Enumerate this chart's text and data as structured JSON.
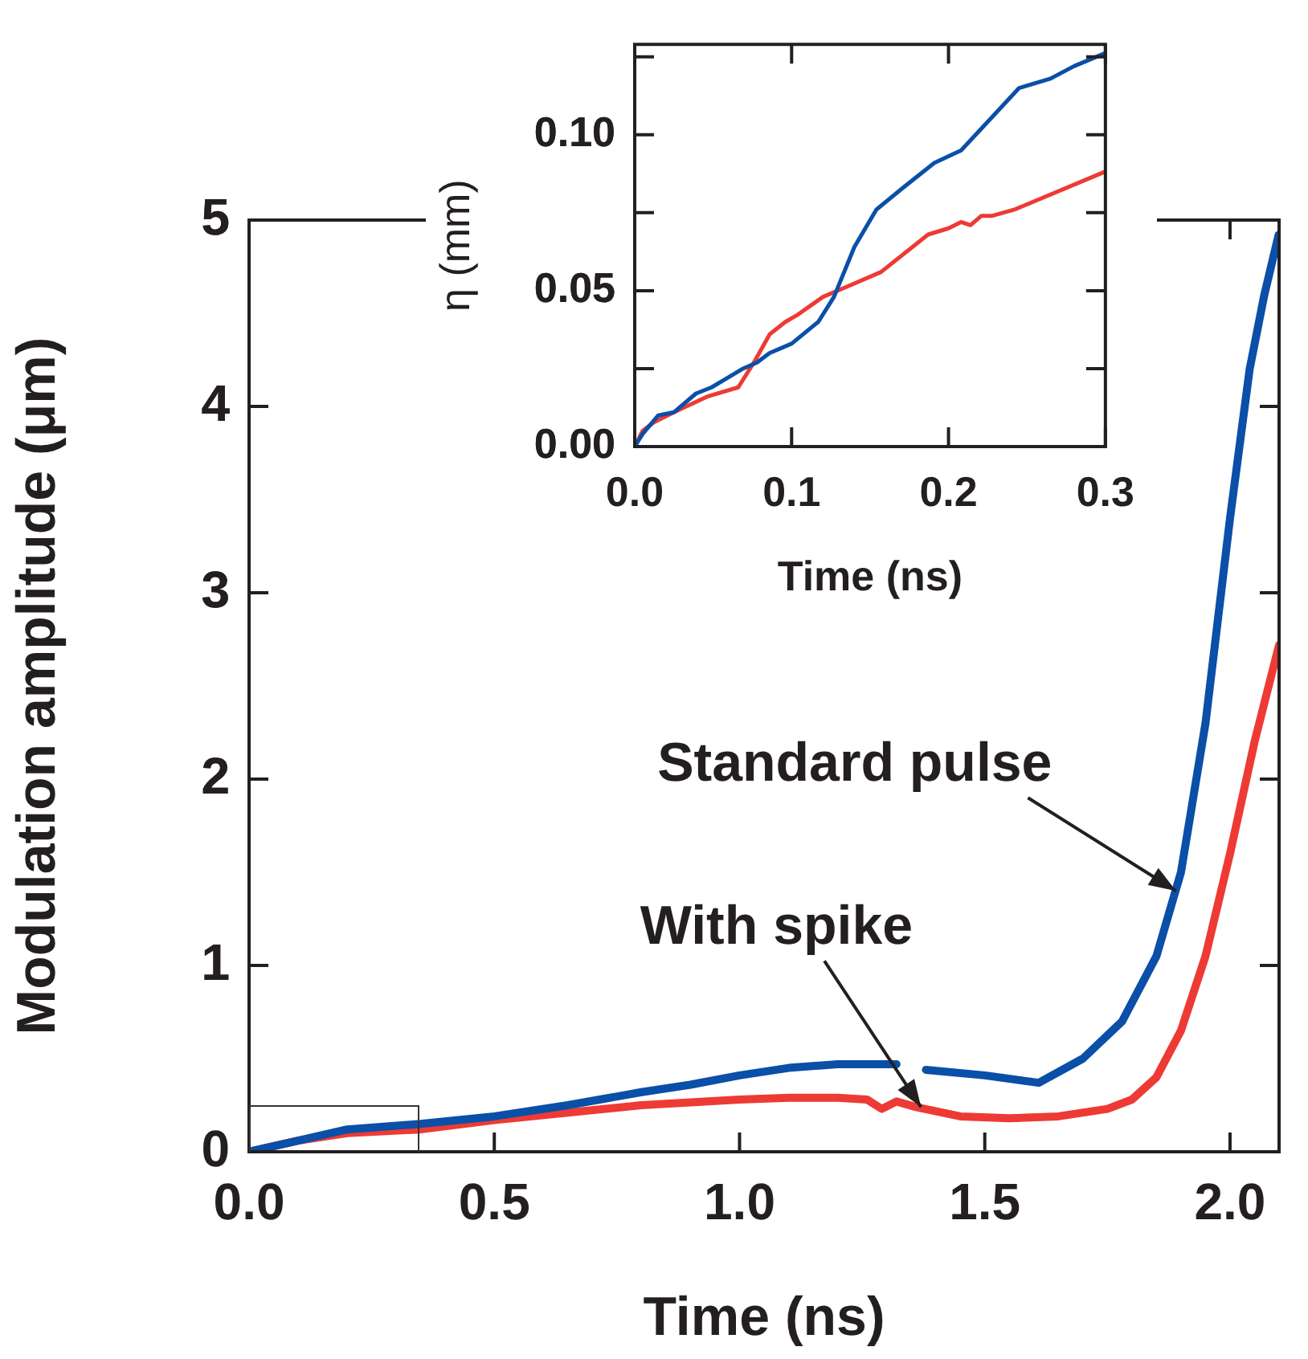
{
  "chart_data": [
    {
      "type": "line",
      "xlabel": "Time (ns)",
      "ylabel": "Modulation amplitude (μm)",
      "xlim": [
        0,
        2.1
      ],
      "ylim": [
        0,
        5
      ],
      "xticks": [
        {
          "value": 0,
          "label": "0.0"
        },
        {
          "value": 0.5,
          "label": "0.5"
        },
        {
          "value": 1,
          "label": "1.0"
        },
        {
          "value": 1.5,
          "label": "1.5"
        },
        {
          "value": 2,
          "label": "2.0"
        }
      ],
      "yticks": [
        0,
        1,
        2,
        3,
        4,
        5
      ],
      "grid": false,
      "legend": false,
      "marker": "none",
      "line_style": "solid",
      "series": [
        {
          "color": "#0a4fa8",
          "x": [
            0,
            0.1,
            0.2,
            0.35,
            0.5,
            0.65,
            0.8,
            0.9,
            1.0,
            1.1,
            1.2,
            1.32,
            1.34,
            1.38,
            1.5,
            1.61,
            1.7,
            1.78,
            1.85,
            1.9,
            1.95,
            2.0,
            2.04,
            2.07,
            2.099
          ],
          "values": [
            0,
            0.06,
            0.12,
            0.15,
            0.19,
            0.25,
            0.32,
            0.36,
            0.41,
            0.45,
            0.47,
            0.47,
            null,
            0.44,
            0.41,
            0.37,
            0.5,
            0.7,
            1.05,
            1.5,
            2.3,
            3.4,
            4.2,
            4.6,
            4.92
          ]
        },
        {
          "color": "#ee3a34",
          "x": [
            0,
            0.1,
            0.2,
            0.35,
            0.5,
            0.65,
            0.8,
            1.0,
            1.1,
            1.2,
            1.26,
            1.29,
            1.32,
            1.36,
            1.45,
            1.55,
            1.65,
            1.75,
            1.8,
            1.85,
            1.9,
            1.95,
            2.0,
            2.05,
            2.1
          ],
          "values": [
            0,
            0.06,
            0.1,
            0.12,
            0.17,
            0.21,
            0.25,
            0.28,
            0.29,
            0.29,
            0.28,
            0.23,
            0.27,
            0.24,
            0.19,
            0.18,
            0.19,
            0.23,
            0.28,
            0.4,
            0.65,
            1.05,
            1.6,
            2.2,
            2.72
          ]
        }
      ],
      "annotations": [
        {
          "text": "Standard pulse",
          "x": 1.89,
          "y": 1.4
        },
        {
          "text": "With spike",
          "x": 1.37,
          "y": 0.24
        }
      ]
    },
    {
      "type": "line",
      "xlabel": "Time (ns)",
      "ylabel": "η (mm)",
      "xlim": [
        0,
        0.3
      ],
      "ylim": [
        0,
        0.129
      ],
      "xticks": [
        {
          "value": 0,
          "label": "0.0"
        },
        {
          "value": 0.1,
          "label": "0.1"
        },
        {
          "value": 0.2,
          "label": "0.2"
        },
        {
          "value": 0.3,
          "label": "0.3"
        }
      ],
      "yticks": [
        {
          "value": 0,
          "label": "0.00"
        },
        {
          "value": 0.025,
          "label": null
        },
        {
          "value": 0.05,
          "label": "0.05"
        },
        {
          "value": 0.075,
          "label": null
        },
        {
          "value": 0.1,
          "label": "0.10"
        },
        {
          "value": 0.125,
          "label": null
        }
      ],
      "grid": false,
      "legend": false,
      "marker": "none",
      "line_style": "solid",
      "series": [
        {
          "color": "#0a4fa8",
          "x": [
            0,
            0.005,
            0.015,
            0.025,
            0.039,
            0.049,
            0.059,
            0.069,
            0.078,
            0.086,
            0.1,
            0.117,
            0.127,
            0.14,
            0.154,
            0.171,
            0.191,
            0.208,
            0.221,
            0.245,
            0.265,
            0.28,
            0.299
          ],
          "values": [
            0,
            0.004,
            0.01,
            0.011,
            0.017,
            0.019,
            0.022,
            0.025,
            0.027,
            0.03,
            0.033,
            0.04,
            0.048,
            0.064,
            0.076,
            0.083,
            0.091,
            0.095,
            0.102,
            0.115,
            0.118,
            0.122,
            0.126
          ]
        },
        {
          "color": "#ee3a34",
          "x": [
            0,
            0.005,
            0.012,
            0.025,
            0.046,
            0.066,
            0.076,
            0.086,
            0.096,
            0.103,
            0.12,
            0.134,
            0.157,
            0.187,
            0.2,
            0.208,
            0.214,
            0.221,
            0.228,
            0.242,
            0.299
          ],
          "values": [
            0,
            0.005,
            0.0077,
            0.011,
            0.016,
            0.019,
            0.027,
            0.036,
            0.04,
            0.042,
            0.048,
            0.051,
            0.056,
            0.068,
            0.07,
            0.072,
            0.071,
            0.074,
            0.074,
            0.076,
            0.088
          ]
        }
      ]
    }
  ]
}
